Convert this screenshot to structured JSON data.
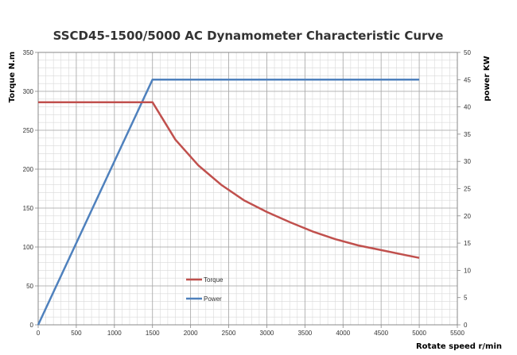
{
  "chart_data": {
    "type": "line",
    "title": "SSCD45-1500/5000 AC Dynamometer Characteristic Curve",
    "xlabel": "Rotate speed r/min",
    "ylabel": "Torque N.m",
    "y2label": "power KW",
    "xlim": [
      0,
      5500
    ],
    "ylim": [
      0,
      350
    ],
    "y2lim": [
      0,
      50
    ],
    "xticks": [
      "0",
      "500",
      "1000",
      "1500",
      "2000",
      "2500",
      "3000",
      "3500",
      "4000",
      "4500",
      "5000",
      "5500"
    ],
    "yticks": [
      "0",
      "50",
      "100",
      "150",
      "200",
      "250",
      "300",
      "350"
    ],
    "y2ticks": [
      "0",
      "5",
      "10",
      "15",
      "20",
      "25",
      "30",
      "35",
      "40",
      "45",
      "50"
    ],
    "grid": true,
    "legend_position": "inside-lower-center",
    "series": [
      {
        "name": "Torque",
        "axis": "left",
        "color": "#C0504D",
        "x": [
          0,
          1500,
          1800,
          2100,
          2400,
          2700,
          3000,
          3300,
          3600,
          3900,
          4200,
          4500,
          4800,
          5000
        ],
        "values": [
          286,
          286,
          238,
          205,
          180,
          160,
          145,
          132,
          120,
          110,
          102,
          96,
          90,
          86
        ]
      },
      {
        "name": "Power",
        "axis": "right",
        "color": "#4F81BD",
        "x": [
          0,
          1500,
          5000
        ],
        "values": [
          0,
          45,
          45
        ]
      }
    ]
  }
}
